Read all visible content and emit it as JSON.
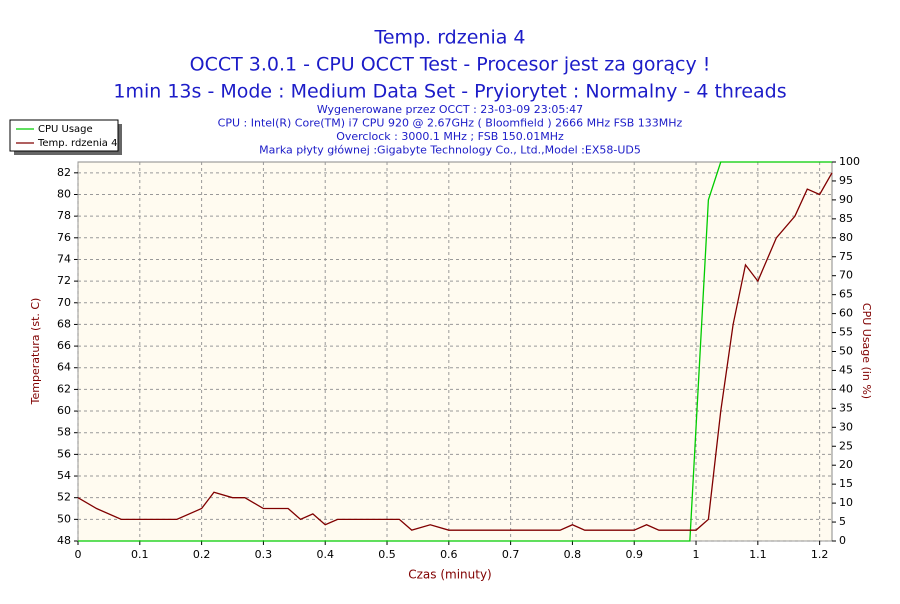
{
  "chart_data": {
    "type": "line",
    "title_lines": [
      "Temp. rdzenia 4",
      "OCCT 3.0.1 - CPU OCCT Test - Procesor jest za gorący !",
      "1min 13s - Mode : Medium Data Set - Pryiorytet : Normalny - 4 threads"
    ],
    "subtitle_lines": [
      "Wygenerowane przez OCCT : 23-03-09 23:05:47",
      "CPU : Intel(R) Core(TM) i7 CPU 920 @ 2.67GHz ( Bloomfield ) 2666 MHz FSB 133MHz",
      "Overclock : 3000.1 MHz ; FSB 150.01MHz",
      "Marka płyty głównej :Gigabyte Technology Co., Ltd.,Model :EX58-UD5"
    ],
    "x_label": "Czas (minuty)",
    "y_label": "Temperatura (st. C)",
    "y2_label": "CPU Usage (in %)",
    "x": [
      0,
      0.03,
      0.07,
      0.16,
      0.2,
      0.22,
      0.25,
      0.27,
      0.3,
      0.34,
      0.36,
      0.38,
      0.4,
      0.42,
      0.52,
      0.54,
      0.57,
      0.6,
      0.78,
      0.8,
      0.82,
      0.9,
      0.92,
      0.94,
      0.99,
      1.0,
      1.02,
      1.04,
      1.06,
      1.08,
      1.1,
      1.13,
      1.16,
      1.18,
      1.2,
      1.22
    ],
    "series": [
      {
        "name": "CPU Usage",
        "color": "#00cc00",
        "axis": "y2",
        "values": [
          0,
          0,
          0,
          0,
          0,
          0,
          0,
          0,
          0,
          0,
          0,
          0,
          0,
          0,
          0,
          0,
          0,
          0,
          0,
          0,
          0,
          0,
          0,
          0,
          0,
          30,
          90,
          100,
          100,
          100,
          100,
          100,
          100,
          100,
          100,
          100
        ]
      },
      {
        "name": "Temp. rdzenia 4",
        "color": "#800000",
        "values": [
          52,
          51,
          50,
          50,
          51,
          52.5,
          52,
          52,
          51,
          51,
          50,
          50.5,
          49.5,
          50,
          50,
          49,
          49.5,
          49,
          49,
          49.5,
          49,
          49,
          49.5,
          49,
          49,
          49,
          50,
          60,
          68,
          73.5,
          72,
          76,
          78,
          80.5,
          80,
          82
        ]
      }
    ],
    "xlim": [
      0,
      1.22
    ],
    "xticks": [
      0,
      0.1,
      0.2,
      0.3,
      0.4,
      0.5,
      0.6,
      0.7,
      0.8,
      0.9,
      1,
      1.1,
      1.2
    ],
    "ylim": [
      48,
      83
    ],
    "yticks": [
      48,
      50,
      52,
      54,
      56,
      58,
      60,
      62,
      64,
      66,
      68,
      70,
      72,
      74,
      76,
      78,
      80,
      82
    ],
    "y2lim": [
      0,
      100
    ],
    "y2ticks": [
      0,
      5,
      10,
      15,
      20,
      25,
      30,
      35,
      40,
      45,
      50,
      55,
      60,
      65,
      70,
      75,
      80,
      85,
      90,
      95,
      100
    ],
    "grid": true,
    "legend": "top-left"
  }
}
